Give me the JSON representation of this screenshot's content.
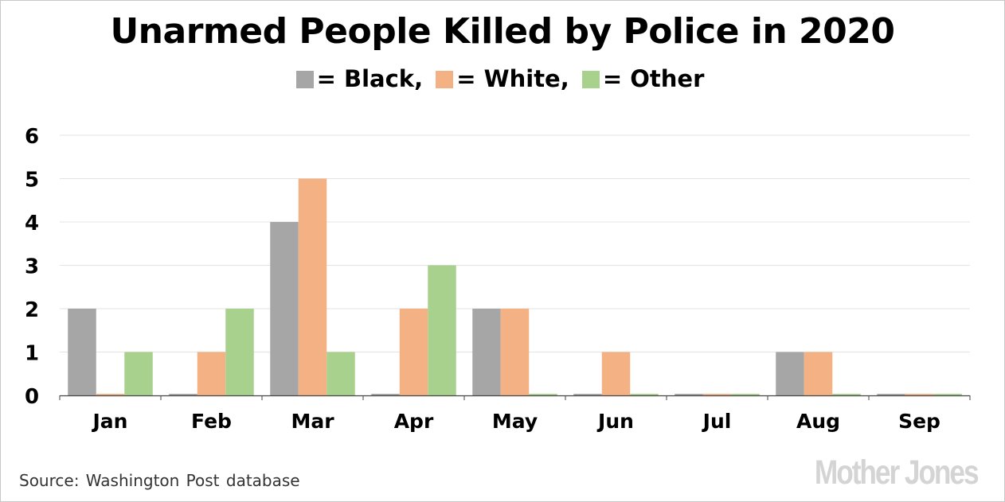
{
  "chart_data": {
    "type": "bar",
    "title": "Unarmed People Killed by Police in 2020",
    "categories": [
      "Jan",
      "Feb",
      "Mar",
      "Apr",
      "May",
      "Jun",
      "Jul",
      "Aug",
      "Sep"
    ],
    "series": [
      {
        "name": "Black",
        "legend_text": "= Black,",
        "color": "#a6a6a6",
        "values": [
          2,
          0,
          4,
          0,
          2,
          0,
          0,
          1,
          0
        ]
      },
      {
        "name": "White",
        "legend_text": "= White,",
        "color": "#f4b183",
        "values": [
          0,
          1,
          5,
          2,
          2,
          1,
          0,
          1,
          0
        ]
      },
      {
        "name": "Other",
        "legend_text": "= Other",
        "color": "#a9d18e",
        "values": [
          1,
          2,
          1,
          3,
          0,
          0,
          0,
          0,
          0
        ]
      }
    ],
    "yticks": [
      "0",
      "1",
      "2",
      "3",
      "4",
      "5",
      "6"
    ],
    "ylim": [
      0,
      6
    ],
    "grid": true,
    "legend_position": "top-center"
  },
  "source": "Source: Washington Post database",
  "brand": "Mother Jones"
}
